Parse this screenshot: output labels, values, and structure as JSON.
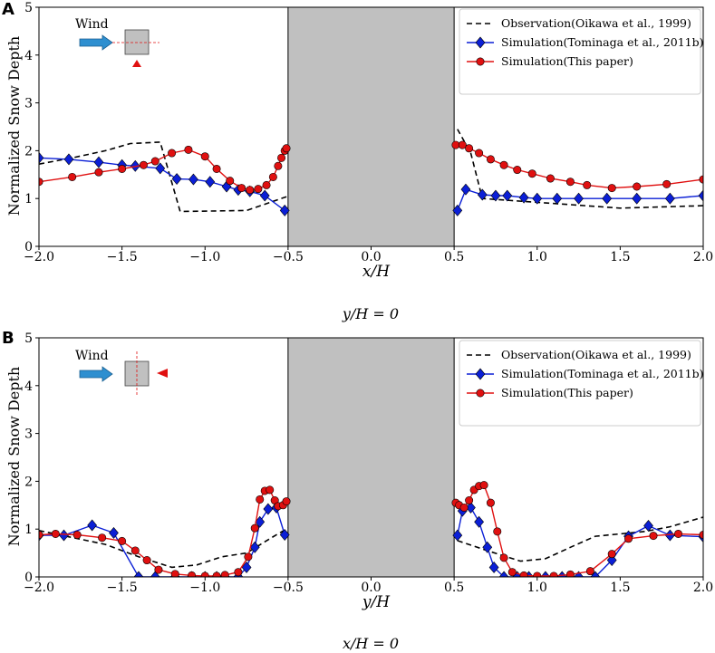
{
  "chart_data": [
    {
      "type": "line",
      "panel": "A",
      "xlabel": "x/H",
      "ylabel": "Normalized Snow Depth",
      "caption": "y/H = 0",
      "xlim": [
        -2.0,
        2.0
      ],
      "ylim": [
        0,
        5
      ],
      "xticks": [
        "−2.0",
        "−1.5",
        "−1.0",
        "−0.5",
        "0.0",
        "0.5",
        "1.0",
        "1.5",
        "2.0"
      ],
      "yticks": [
        "0",
        "1",
        "2",
        "3",
        "4",
        "5"
      ],
      "building_range": [
        -0.5,
        0.5
      ],
      "inset": {
        "wind_label": "Wind",
        "section": "horizontal"
      },
      "legend": [
        "Observation(Oikawa et al., 1999)",
        "Simulation(Tominaga et al., 2011b)",
        "Simulation(This paper)"
      ],
      "series": [
        {
          "name": "Observation(Oikawa et al., 1999)",
          "style": "dashed",
          "color": "#000000",
          "marker": "none",
          "segments": [
            [
              [
                -2.0,
                1.72
              ],
              [
                -1.8,
                1.85
              ],
              [
                -1.6,
                2.0
              ],
              [
                -1.45,
                2.15
              ],
              [
                -1.27,
                2.18
              ],
              [
                -1.15,
                0.73
              ],
              [
                -0.75,
                0.75
              ],
              [
                -0.5,
                1.05
              ]
            ],
            [
              [
                0.52,
                2.45
              ],
              [
                0.6,
                1.95
              ],
              [
                0.67,
                1.0
              ],
              [
                1.0,
                0.92
              ],
              [
                1.5,
                0.8
              ],
              [
                2.0,
                0.85
              ]
            ]
          ]
        },
        {
          "name": "Simulation(Tominaga et al., 2011b)",
          "style": "solid",
          "color": "#0b1fd6",
          "marker": "diamond",
          "segments": [
            [
              [
                -2.0,
                1.85
              ],
              [
                -1.82,
                1.82
              ],
              [
                -1.64,
                1.76
              ],
              [
                -1.5,
                1.7
              ],
              [
                -1.42,
                1.68
              ],
              [
                -1.27,
                1.63
              ],
              [
                -1.17,
                1.41
              ],
              [
                -1.07,
                1.4
              ],
              [
                -0.97,
                1.35
              ],
              [
                -0.87,
                1.25
              ],
              [
                -0.8,
                1.18
              ],
              [
                -0.73,
                1.15
              ],
              [
                -0.64,
                1.06
              ],
              [
                -0.52,
                0.75
              ]
            ],
            [
              [
                0.52,
                0.75
              ],
              [
                0.57,
                1.19
              ],
              [
                0.67,
                1.08
              ],
              [
                0.75,
                1.06
              ],
              [
                0.82,
                1.06
              ],
              [
                0.92,
                1.02
              ],
              [
                1.0,
                1.0
              ],
              [
                1.12,
                1.0
              ],
              [
                1.25,
                1.0
              ],
              [
                1.42,
                1.0
              ],
              [
                1.6,
                1.0
              ],
              [
                1.8,
                1.0
              ],
              [
                2.0,
                1.06
              ]
            ]
          ]
        },
        {
          "name": "Simulation(This paper)",
          "style": "solid",
          "color": "#e01010",
          "marker": "circle",
          "segments": [
            [
              [
                -2.0,
                1.35
              ],
              [
                -1.8,
                1.45
              ],
              [
                -1.64,
                1.55
              ],
              [
                -1.5,
                1.62
              ],
              [
                -1.37,
                1.7
              ],
              [
                -1.3,
                1.78
              ],
              [
                -1.2,
                1.95
              ],
              [
                -1.1,
                2.02
              ],
              [
                -1.0,
                1.88
              ],
              [
                -0.93,
                1.62
              ],
              [
                -0.85,
                1.37
              ],
              [
                -0.78,
                1.22
              ],
              [
                -0.73,
                1.18
              ],
              [
                -0.68,
                1.2
              ],
              [
                -0.63,
                1.28
              ],
              [
                -0.59,
                1.45
              ],
              [
                -0.56,
                1.68
              ],
              [
                -0.54,
                1.85
              ],
              [
                -0.52,
                2.0
              ],
              [
                -0.51,
                2.05
              ]
            ],
            [
              [
                0.51,
                2.12
              ],
              [
                0.55,
                2.12
              ],
              [
                0.59,
                2.05
              ],
              [
                0.65,
                1.95
              ],
              [
                0.72,
                1.82
              ],
              [
                0.8,
                1.7
              ],
              [
                0.88,
                1.6
              ],
              [
                0.97,
                1.52
              ],
              [
                1.08,
                1.42
              ],
              [
                1.2,
                1.35
              ],
              [
                1.3,
                1.28
              ],
              [
                1.45,
                1.22
              ],
              [
                1.6,
                1.25
              ],
              [
                1.78,
                1.3
              ],
              [
                2.0,
                1.4
              ]
            ]
          ]
        }
      ]
    },
    {
      "type": "line",
      "panel": "B",
      "xlabel": "y/H",
      "ylabel": "Normalized Snow Depth",
      "caption": "x/H = 0",
      "xlim": [
        -2.0,
        2.0
      ],
      "ylim": [
        0,
        5
      ],
      "xticks": [
        "−2.0",
        "−1.5",
        "−1.0",
        "−0.5",
        "0.0",
        "0.5",
        "1.0",
        "1.5",
        "2.0"
      ],
      "yticks": [
        "0",
        "1",
        "2",
        "3",
        "4",
        "5"
      ],
      "building_range": [
        -0.5,
        0.5
      ],
      "inset": {
        "wind_label": "Wind",
        "section": "vertical"
      },
      "legend": [
        "Observation(Oikawa et al., 1999)",
        "Simulation(Tominaga et al., 2011b)",
        "Simulation(This paper)"
      ],
      "series": [
        {
          "name": "Observation(Oikawa et al., 1999)",
          "style": "dashed",
          "color": "#000000",
          "marker": "none",
          "segments": [
            [
              [
                -2.0,
                0.97
              ],
              [
                -1.6,
                0.68
              ],
              [
                -1.4,
                0.42
              ],
              [
                -1.2,
                0.2
              ],
              [
                -1.05,
                0.25
              ],
              [
                -0.9,
                0.42
              ],
              [
                -0.75,
                0.5
              ],
              [
                -0.6,
                0.82
              ],
              [
                -0.5,
                1.02
              ]
            ],
            [
              [
                0.52,
                0.76
              ],
              [
                0.7,
                0.55
              ],
              [
                0.9,
                0.33
              ],
              [
                1.05,
                0.38
              ],
              [
                1.2,
                0.62
              ],
              [
                1.35,
                0.85
              ],
              [
                1.5,
                0.9
              ],
              [
                1.65,
                0.95
              ],
              [
                1.8,
                1.05
              ],
              [
                2.0,
                1.25
              ]
            ]
          ]
        },
        {
          "name": "Simulation(Tominaga et al., 2011b)",
          "style": "solid",
          "color": "#0b1fd6",
          "marker": "diamond",
          "segments": [
            [
              [
                -2.0,
                0.87
              ],
              [
                -1.85,
                0.87
              ],
              [
                -1.68,
                1.08
              ],
              [
                -1.55,
                0.92
              ],
              [
                -1.4,
                0.0
              ],
              [
                -1.3,
                0.0
              ],
              [
                -1.18,
                0.0
              ],
              [
                -1.08,
                0.0
              ],
              [
                -1.0,
                0.0
              ],
              [
                -0.93,
                0.0
              ],
              [
                -0.88,
                0.0
              ],
              [
                -0.8,
                0.0
              ],
              [
                -0.75,
                0.2
              ],
              [
                -0.7,
                0.62
              ],
              [
                -0.67,
                1.15
              ],
              [
                -0.62,
                1.42
              ],
              [
                -0.57,
                1.45
              ],
              [
                -0.52,
                0.88
              ]
            ],
            [
              [
                0.52,
                0.87
              ],
              [
                0.55,
                1.38
              ],
              [
                0.6,
                1.45
              ],
              [
                0.65,
                1.15
              ],
              [
                0.7,
                0.62
              ],
              [
                0.74,
                0.2
              ],
              [
                0.8,
                0.0
              ],
              [
                0.88,
                0.0
              ],
              [
                0.95,
                0.0
              ],
              [
                1.05,
                0.0
              ],
              [
                1.15,
                0.0
              ],
              [
                1.25,
                0.0
              ],
              [
                1.35,
                0.0
              ],
              [
                1.45,
                0.35
              ],
              [
                1.55,
                0.85
              ],
              [
                1.67,
                1.07
              ],
              [
                1.8,
                0.87
              ],
              [
                2.0,
                0.84
              ]
            ]
          ]
        },
        {
          "name": "Simulation(This paper)",
          "style": "solid",
          "color": "#e01010",
          "marker": "circle",
          "segments": [
            [
              [
                -2.0,
                0.88
              ],
              [
                -1.9,
                0.9
              ],
              [
                -1.77,
                0.88
              ],
              [
                -1.62,
                0.82
              ],
              [
                -1.5,
                0.75
              ],
              [
                -1.42,
                0.55
              ],
              [
                -1.35,
                0.35
              ],
              [
                -1.28,
                0.15
              ],
              [
                -1.18,
                0.06
              ],
              [
                -1.08,
                0.03
              ],
              [
                -1.0,
                0.02
              ],
              [
                -0.93,
                0.02
              ],
              [
                -0.88,
                0.04
              ],
              [
                -0.8,
                0.1
              ],
              [
                -0.74,
                0.42
              ],
              [
                -0.7,
                1.02
              ],
              [
                -0.67,
                1.62
              ],
              [
                -0.64,
                1.8
              ],
              [
                -0.61,
                1.82
              ],
              [
                -0.58,
                1.6
              ],
              [
                -0.56,
                1.48
              ],
              [
                -0.53,
                1.5
              ],
              [
                -0.51,
                1.58
              ]
            ],
            [
              [
                0.51,
                1.55
              ],
              [
                0.53,
                1.5
              ],
              [
                0.56,
                1.45
              ],
              [
                0.59,
                1.6
              ],
              [
                0.62,
                1.82
              ],
              [
                0.65,
                1.9
              ],
              [
                0.68,
                1.92
              ],
              [
                0.72,
                1.55
              ],
              [
                0.76,
                0.95
              ],
              [
                0.8,
                0.4
              ],
              [
                0.85,
                0.1
              ],
              [
                0.92,
                0.03
              ],
              [
                1.0,
                0.02
              ],
              [
                1.1,
                0.02
              ],
              [
                1.2,
                0.05
              ],
              [
                1.32,
                0.12
              ],
              [
                1.45,
                0.48
              ],
              [
                1.55,
                0.8
              ],
              [
                1.7,
                0.86
              ],
              [
                1.85,
                0.9
              ],
              [
                2.0,
                0.88
              ]
            ]
          ]
        }
      ]
    }
  ]
}
